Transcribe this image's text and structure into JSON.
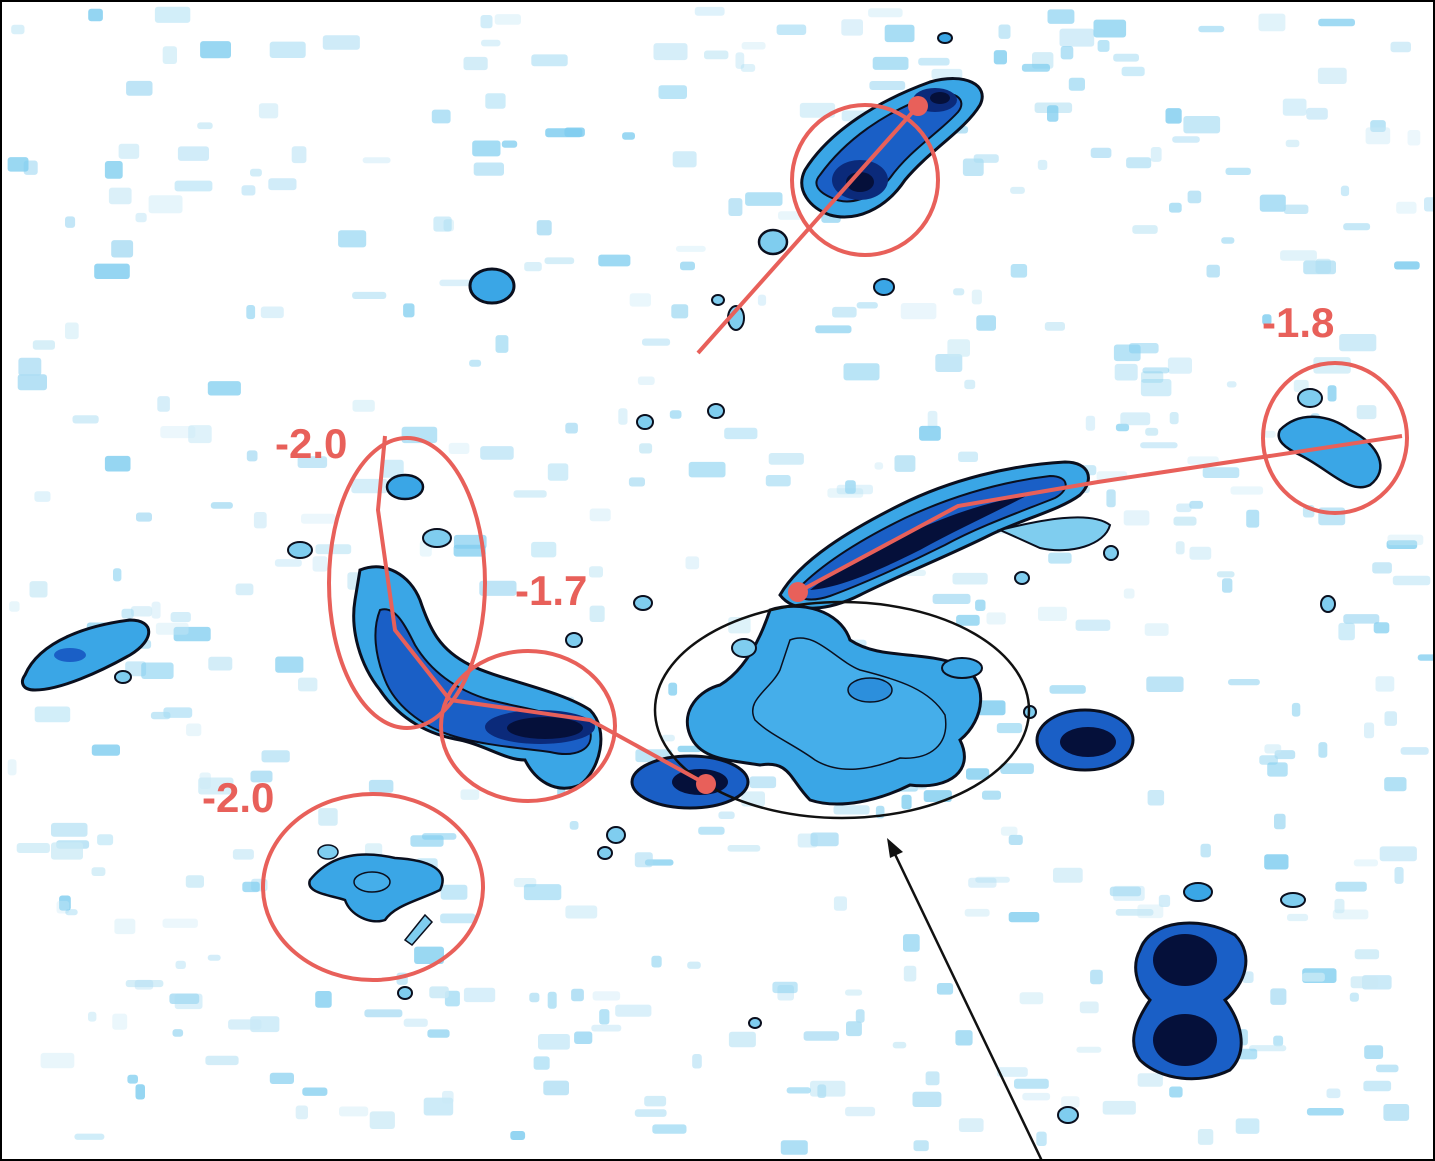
{
  "figure": {
    "labels": [
      {
        "id": "label-1-8",
        "text": "-1.8"
      },
      {
        "id": "label-2-0-upper",
        "text": "-2.0"
      },
      {
        "id": "label-1-7",
        "text": "-1.7"
      },
      {
        "id": "label-2-0-lower",
        "text": "-2.0"
      }
    ],
    "colors": {
      "annotation": "#e8605a",
      "contour": "#0a0f1e",
      "faint": "#c9e9f6",
      "light": "#7fcdef",
      "mid": "#3aa6e6",
      "deep": "#1a5fc6",
      "core": "#05103a",
      "frame": "#000000"
    }
  }
}
